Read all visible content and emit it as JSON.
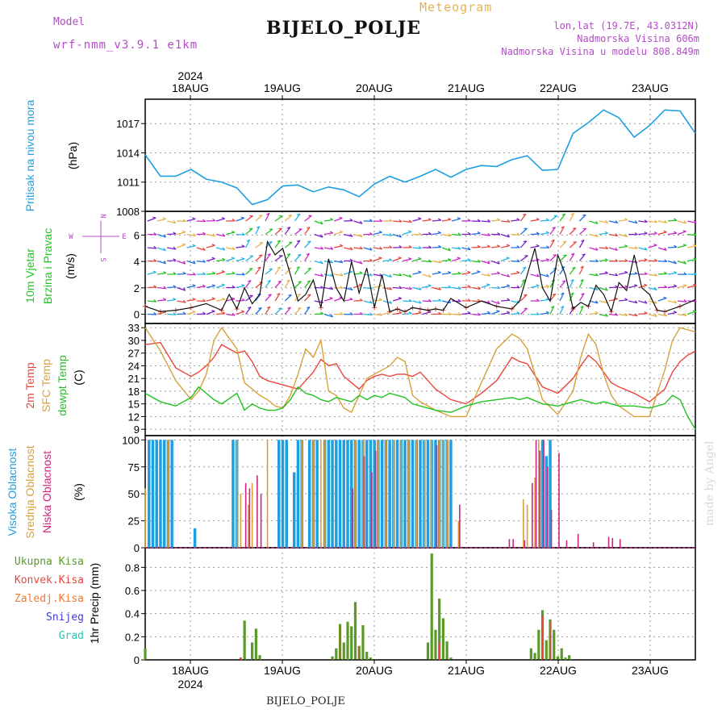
{
  "header": {
    "model_label": "Model",
    "model_value": "wrf-nmm_v3.9.1 e1km",
    "title": "BIJELO_POLJE",
    "product": "Meteogram",
    "location_line1": "lon,lat (19.7E, 43.0312N)",
    "location_line2": "Nadmorska Visina 606m",
    "location_line3": "Nadmorska Visina u modelu 808.849m",
    "footer": "BIJELO_POLJE",
    "credit": "made by Angel"
  },
  "colors": {
    "pressure": "#1e9fe0",
    "temp2m": "#e8463c",
    "sfc": "#d9a03a",
    "dew": "#22c322",
    "high_cloud": "#1e9fe0",
    "mid_cloud": "#d9a03a",
    "low_cloud": "#c8287c",
    "precip_total": "#5a9a28",
    "precip_conv": "#e8463c",
    "wind_speed": "#111111",
    "wind_calm": "#e8463c",
    "legend_purple": "#b44cc8"
  },
  "chart_data": [
    {
      "id": "pressure",
      "type": "line",
      "ylabel": [
        "Pritisak na nivou mora",
        "(hPa)"
      ],
      "yticks": [
        "1008",
        "1011",
        "1014",
        "1017"
      ],
      "ylim": [
        1008,
        1019.5
      ],
      "x_top_labels": [
        "18AUG",
        "19AUG",
        "20AUG",
        "21AUG",
        "22AUG",
        "23AUG"
      ],
      "x_top_year": "2024",
      "x": [
        0,
        4,
        8,
        12,
        16,
        20,
        24,
        28,
        32,
        36,
        40,
        44,
        48,
        52,
        56,
        60,
        64,
        68,
        72,
        76,
        80,
        84,
        88,
        92,
        96,
        100,
        104,
        108,
        112,
        116,
        120,
        124,
        128,
        132,
        136,
        140,
        144
      ],
      "series": [
        {
          "values": [
            1013.8,
            1011.6,
            1011.6,
            1012.3,
            1011.3,
            1011.0,
            1010.4,
            1008.7,
            1009.2,
            1010.6,
            1010.7,
            1010.0,
            1010.5,
            1010.2,
            1009.5,
            1010.8,
            1011.6,
            1011.0,
            1011.6,
            1012.3,
            1011.5,
            1012.3,
            1012.7,
            1012.6,
            1013.3,
            1013.7,
            1012.2,
            1012.3,
            1016.0,
            1017.1,
            1018.4,
            1017.6,
            1015.6,
            1016.8,
            1018.4,
            1018.3,
            1016.0
          ]
        }
      ]
    },
    {
      "id": "wind",
      "type": "line",
      "ylabel": [
        "10m Vjetar",
        "Brzina i Pravac",
        "(m/s)"
      ],
      "yticks": [
        "0",
        "2",
        "4",
        "6"
      ],
      "ylim": [
        -0.7,
        7.8
      ],
      "compass": [
        "W",
        "E",
        "N",
        "S"
      ],
      "x": [
        0,
        4,
        8,
        12,
        16,
        20,
        22,
        24,
        26,
        28,
        30,
        32,
        34,
        36,
        38,
        40,
        42,
        44,
        46,
        48,
        50,
        52,
        54,
        56,
        58,
        60,
        62,
        64,
        66,
        68,
        70,
        72,
        74,
        76,
        78,
        80,
        84,
        88,
        92,
        96,
        98,
        100,
        102,
        104,
        106,
        108,
        110,
        112,
        114,
        116,
        118,
        120,
        122,
        124,
        126,
        128,
        130,
        132,
        134,
        136,
        140,
        144
      ],
      "series": [
        {
          "name": "speed",
          "values": [
            0.6,
            0.2,
            0.3,
            0.5,
            0.8,
            0.3,
            1.5,
            0.4,
            2.0,
            0.8,
            1.5,
            5.5,
            4.5,
            5.0,
            3.0,
            1.0,
            1.5,
            2.6,
            0.5,
            4.2,
            2.0,
            1.0,
            4.0,
            1.6,
            3.5,
            0.5,
            3.0,
            0.2,
            0.4,
            0.2,
            0.5,
            0.4,
            0.3,
            0.4,
            0.3,
            1.2,
            0.5,
            1.0,
            0.6,
            0.4,
            1.0,
            3.0,
            5.0,
            2.0,
            1.0,
            4.5,
            3.0,
            0.4,
            0.9,
            0.6,
            2.2,
            1.5,
            0.2,
            2.4,
            1.8,
            4.5,
            2.0,
            1.5,
            0.3,
            0.2,
            0.6,
            1.1
          ]
        }
      ]
    },
    {
      "id": "temperature",
      "type": "line",
      "ylabel": [
        "2m Temp",
        "SFC Temp",
        "dewpt Temp",
        "(C)"
      ],
      "yticks": [
        "9",
        "12",
        "15",
        "18",
        "21",
        "24",
        "27",
        "30",
        "33"
      ],
      "ylim": [
        7.5,
        34
      ],
      "x": [
        0,
        4,
        8,
        12,
        14,
        16,
        18,
        20,
        24,
        26,
        28,
        30,
        32,
        34,
        36,
        38,
        40,
        42,
        44,
        46,
        48,
        50,
        52,
        54,
        56,
        58,
        60,
        62,
        64,
        66,
        68,
        70,
        72,
        76,
        80,
        84,
        88,
        92,
        96,
        98,
        100,
        104,
        108,
        112,
        114,
        116,
        118,
        120,
        122,
        124,
        128,
        132,
        136,
        138,
        140,
        142,
        144
      ],
      "series": [
        {
          "name": "2m Temp",
          "values": [
            29.0,
            29.5,
            23.5,
            21.5,
            22.5,
            24.0,
            26.0,
            29.0,
            27.0,
            27.5,
            25.0,
            21.5,
            20.5,
            20.0,
            19.5,
            19.0,
            18.5,
            20.5,
            22.5,
            25.5,
            24.0,
            24.5,
            21.5,
            20.0,
            18.5,
            20.5,
            21.5,
            22.0,
            21.5,
            22.0,
            22.0,
            21.5,
            22.5,
            18.5,
            16.0,
            15.0,
            17.5,
            20.5,
            26.0,
            25.0,
            24.5,
            19.0,
            17.5,
            21.0,
            24.0,
            26.5,
            25.0,
            22.5,
            20.0,
            19.0,
            17.5,
            15.5,
            18.5,
            22.5,
            25.0,
            26.5,
            27.5
          ]
        },
        {
          "name": "SFC Temp",
          "values": [
            33.0,
            27.5,
            20.5,
            16.0,
            18.0,
            22.0,
            30.0,
            33.0,
            28.0,
            20.0,
            18.5,
            17.0,
            16.0,
            14.5,
            14.0,
            17.0,
            22.0,
            28.0,
            26.0,
            30.0,
            18.0,
            17.0,
            14.0,
            13.0,
            17.0,
            21.0,
            22.0,
            23.0,
            24.0,
            26.0,
            25.0,
            17.0,
            15.5,
            13.5,
            12.0,
            12.0,
            20.0,
            28.0,
            31.5,
            30.5,
            28.0,
            16.0,
            12.5,
            18.0,
            26.0,
            31.5,
            29.0,
            22.0,
            17.0,
            14.5,
            12.0,
            12.0,
            23.0,
            30.0,
            33.0,
            32.5,
            32.0
          ]
        },
        {
          "name": "dewpt Temp",
          "values": [
            17.5,
            15.5,
            14.5,
            16.5,
            19.0,
            17.5,
            16.0,
            15.0,
            17.5,
            13.5,
            15.0,
            14.0,
            13.5,
            13.5,
            14.0,
            16.0,
            19.0,
            17.5,
            17.0,
            16.0,
            15.5,
            16.5,
            16.0,
            15.5,
            17.0,
            16.0,
            17.0,
            16.5,
            17.5,
            17.0,
            16.5,
            15.0,
            14.5,
            13.5,
            13.0,
            14.5,
            15.5,
            16.0,
            16.5,
            16.0,
            16.5,
            15.0,
            14.5,
            15.5,
            16.0,
            15.5,
            15.0,
            15.5,
            15.0,
            14.5,
            14.5,
            14.0,
            15.0,
            17.0,
            16.0,
            12.0,
            9.0
          ]
        }
      ]
    },
    {
      "id": "cloud",
      "type": "bar",
      "ylabel": [
        "Visoka Oblacnost",
        "Srednja Oblacnost",
        "Niska Oblacnost",
        "(%)"
      ],
      "yticks": [
        "0",
        "25",
        "50",
        "75",
        "100"
      ],
      "ylim": [
        0,
        104
      ],
      "series": [
        {
          "name": "Visoka Oblacnost",
          "x": [
            1,
            2,
            3,
            4,
            5,
            6,
            7,
            13,
            23,
            24,
            35,
            36,
            37,
            39,
            40,
            41,
            43,
            44,
            45,
            47,
            48,
            49,
            50,
            51,
            52,
            53,
            54,
            55,
            56,
            57,
            58,
            59,
            60,
            61,
            62,
            63,
            64,
            65,
            66,
            67,
            68,
            69,
            70,
            71,
            72,
            73,
            74,
            75,
            76,
            77,
            78,
            79,
            80,
            104,
            105,
            106
          ],
          "values": [
            100,
            100,
            100,
            100,
            100,
            100,
            100,
            18,
            100,
            100,
            100,
            100,
            100,
            70,
            100,
            100,
            100,
            100,
            100,
            100,
            100,
            100,
            100,
            100,
            100,
            100,
            100,
            100,
            100,
            100,
            100,
            100,
            100,
            100,
            100,
            100,
            100,
            100,
            100,
            100,
            100,
            100,
            100,
            100,
            100,
            100,
            100,
            100,
            100,
            100,
            100,
            100,
            100,
            100,
            85,
            100
          ]
        },
        {
          "name": "Srednja Oblacnost",
          "x": [
            0,
            6,
            24,
            25,
            27,
            28,
            32,
            41,
            44,
            46,
            47,
            55,
            57,
            61,
            63,
            65,
            67,
            69,
            71,
            73,
            75,
            77,
            78,
            79,
            82,
            99,
            100,
            102,
            103
          ],
          "values": [
            55,
            100,
            100,
            50,
            40,
            60,
            100,
            100,
            100,
            100,
            100,
            100,
            100,
            100,
            100,
            100,
            100,
            100,
            100,
            100,
            100,
            100,
            100,
            100,
            25,
            45,
            40,
            65,
            100
          ]
        },
        {
          "name": "Niska Oblacnost",
          "x": [
            26,
            27,
            29,
            30,
            54,
            57,
            59,
            60,
            76,
            82,
            95,
            96,
            99,
            101,
            102,
            103,
            104,
            105,
            106,
            108,
            110,
            113,
            117,
            121,
            122,
            124
          ],
          "values": [
            60,
            55,
            67,
            50,
            55,
            85,
            70,
            90,
            95,
            40,
            8,
            8,
            7,
            60,
            100,
            90,
            100,
            75,
            35,
            88,
            7,
            13,
            5,
            10,
            9,
            8
          ]
        }
      ]
    },
    {
      "id": "precip",
      "type": "bar",
      "ylabel": [
        "1hr Precip (mm)"
      ],
      "yticks": [
        "0",
        "0.2",
        "0.4",
        "0.6",
        "0.8"
      ],
      "ylim": [
        0,
        0.97
      ],
      "x_bottom_labels": [
        "18AUG",
        "19AUG",
        "20AUG",
        "21AUG",
        "22AUG",
        "23AUG"
      ],
      "x_bottom_year": "2024",
      "legend": [
        "Ukupna Kisa",
        "Konvek.Kisa",
        "Zaledj.Kisa",
        "Snijeg",
        "Grad"
      ],
      "series": [
        {
          "name": "Ukupna Kisa",
          "x": [
            0,
            25,
            26,
            28,
            29,
            30,
            49,
            50,
            51,
            52,
            53,
            54,
            55,
            56,
            57,
            58,
            59,
            74,
            75,
            76,
            77,
            78,
            79,
            80,
            101,
            102,
            103,
            104,
            105,
            106,
            107,
            108,
            109,
            110,
            111
          ],
          "values": [
            0.1,
            0.02,
            0.34,
            0.15,
            0.27,
            0.04,
            0.03,
            0.1,
            0.31,
            0.15,
            0.33,
            0.29,
            0.5,
            0.12,
            0.3,
            0.07,
            0.02,
            0.15,
            0.92,
            0.26,
            0.53,
            0.36,
            0.16,
            0.02,
            0.1,
            0.06,
            0.26,
            0.43,
            0.17,
            0.35,
            0.26,
            0.03,
            0.1,
            0.02,
            0.04
          ]
        },
        {
          "name": "Konvek.Kisa",
          "x": [
            25,
            51,
            56,
            77,
            104,
            106
          ],
          "values": [
            0.02,
            0.3,
            0.12,
            0.15,
            0.38,
            0.33
          ]
        }
      ]
    }
  ]
}
